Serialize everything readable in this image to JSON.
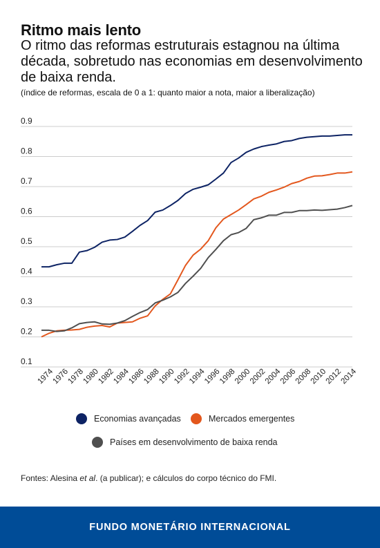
{
  "header": {
    "title": "Ritmo mais lento",
    "subtitle": "O ritmo das reformas estruturais estagnou na última década, sobretudo nas economias em desenvolvimento de baixa renda.",
    "note": "(índice de reformas, escala de 0 a 1: quanto maior a nota, maior a liberalização)"
  },
  "source": {
    "prefix": "Fontes: Alesina ",
    "italic": "et al",
    "suffix": ". (a publicar); e cálculos do corpo técnico do FMI."
  },
  "footer": {
    "text": "FUNDO MONETÁRIO INTERNACIONAL",
    "background": "#004c97"
  },
  "colors": {
    "advanced": "#0d2364",
    "emerging": "#e3571d",
    "low_income": "#4f4f4f",
    "grid": "#cccccc"
  },
  "chart_data": {
    "type": "line",
    "title": "Ritmo mais lento",
    "ylim": [
      0.1,
      0.9
    ],
    "yticks": [
      "0.9",
      "0.8",
      "0.7",
      "0.6",
      "0.5",
      "0.4",
      "0.3",
      "0.2",
      "0.1"
    ],
    "xlim": [
      1973,
      2014
    ],
    "xticks": [
      "1974",
      "1976",
      "1978",
      "1980",
      "1982",
      "1984",
      "1986",
      "1988",
      "1990",
      "1992",
      "1994",
      "1996",
      "1998",
      "2000",
      "2002",
      "2004",
      "2006",
      "2008",
      "2010",
      "2012",
      "2014"
    ],
    "grid": true,
    "legend_position": "bottom",
    "x": [
      1973,
      1974,
      1975,
      1976,
      1977,
      1978,
      1979,
      1980,
      1981,
      1982,
      1983,
      1984,
      1985,
      1986,
      1987,
      1988,
      1989,
      1990,
      1991,
      1992,
      1993,
      1994,
      1995,
      1996,
      1997,
      1998,
      1999,
      2000,
      2001,
      2002,
      2003,
      2004,
      2005,
      2006,
      2007,
      2008,
      2009,
      2010,
      2011,
      2012,
      2013,
      2014
    ],
    "series": [
      {
        "name": "Economias avançadas",
        "color": "#0d2364",
        "values": [
          0.433,
          0.433,
          0.44,
          0.445,
          0.445,
          0.482,
          0.487,
          0.498,
          0.515,
          0.522,
          0.524,
          0.532,
          0.551,
          0.571,
          0.587,
          0.615,
          0.622,
          0.637,
          0.654,
          0.677,
          0.691,
          0.698,
          0.706,
          0.725,
          0.745,
          0.78,
          0.795,
          0.814,
          0.825,
          0.833,
          0.838,
          0.842,
          0.85,
          0.853,
          0.86,
          0.864,
          0.866,
          0.868,
          0.868,
          0.87,
          0.872,
          0.872
        ]
      },
      {
        "name": "Mercados emergentes",
        "color": "#e3571d",
        "values": [
          0.2,
          0.212,
          0.22,
          0.222,
          0.223,
          0.225,
          0.232,
          0.236,
          0.238,
          0.233,
          0.246,
          0.248,
          0.25,
          0.262,
          0.27,
          0.303,
          0.325,
          0.343,
          0.39,
          0.438,
          0.472,
          0.492,
          0.52,
          0.563,
          0.592,
          0.607,
          0.622,
          0.64,
          0.659,
          0.668,
          0.681,
          0.689,
          0.698,
          0.71,
          0.717,
          0.728,
          0.735,
          0.736,
          0.74,
          0.745,
          0.745,
          0.749
        ]
      },
      {
        "name": "Países em desenvolvimento de baixa renda",
        "color": "#4f4f4f",
        "values": [
          0.222,
          0.222,
          0.218,
          0.22,
          0.23,
          0.244,
          0.248,
          0.25,
          0.243,
          0.242,
          0.246,
          0.254,
          0.268,
          0.281,
          0.291,
          0.313,
          0.322,
          0.333,
          0.348,
          0.378,
          0.402,
          0.428,
          0.464,
          0.491,
          0.52,
          0.54,
          0.547,
          0.561,
          0.59,
          0.596,
          0.605,
          0.605,
          0.614,
          0.614,
          0.62,
          0.62,
          0.622,
          0.621,
          0.623,
          0.625,
          0.63,
          0.637
        ]
      }
    ]
  }
}
